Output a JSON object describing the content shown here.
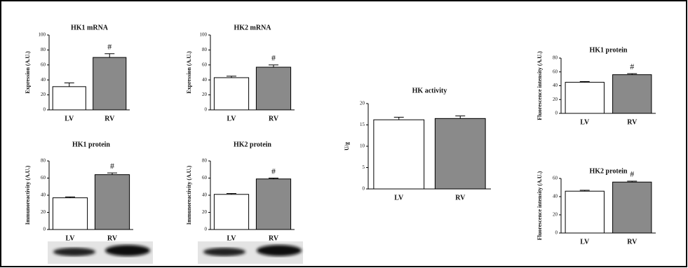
{
  "chart_data": [
    {
      "type": "bar",
      "title": "HK1 mRNA",
      "ylabel": "Expression (A.U.)",
      "categories": [
        "LV",
        "RV"
      ],
      "values": [
        31,
        70
      ],
      "errors": [
        5,
        5
      ],
      "colors": [
        "#ffffff",
        "#8a8a8a"
      ],
      "ylim": [
        0,
        100
      ],
      "yticks": [
        0,
        20,
        40,
        60,
        80,
        100
      ],
      "annotation": "#"
    },
    {
      "type": "bar",
      "title": "HK2 mRNA",
      "ylabel": "Expression (A.U.)",
      "categories": [
        "LV",
        "RV"
      ],
      "values": [
        43,
        57
      ],
      "errors": [
        2,
        3
      ],
      "colors": [
        "#ffffff",
        "#8a8a8a"
      ],
      "ylim": [
        0,
        100
      ],
      "yticks": [
        0,
        20,
        40,
        60,
        80,
        100
      ],
      "annotation": "#"
    },
    {
      "type": "bar",
      "title": "HK1 protein",
      "ylabel": "Immunoreactivity (A.U.)",
      "categories": [
        "LV",
        "RV"
      ],
      "values": [
        37,
        64
      ],
      "errors": [
        1,
        2
      ],
      "colors": [
        "#ffffff",
        "#8a8a8a"
      ],
      "ylim": [
        0,
        80
      ],
      "yticks": [
        0,
        20,
        40,
        60,
        80
      ],
      "annotation": "#"
    },
    {
      "type": "bar",
      "title": "HK2 protein",
      "ylabel": "Immunoreactivity (A.U.)",
      "categories": [
        "LV",
        "RV"
      ],
      "values": [
        41,
        59
      ],
      "errors": [
        1,
        1
      ],
      "colors": [
        "#ffffff",
        "#8a8a8a"
      ],
      "ylim": [
        0,
        80
      ],
      "yticks": [
        0,
        20,
        40,
        60,
        80
      ],
      "annotation": "#"
    },
    {
      "type": "bar",
      "title": "HK activity",
      "ylabel": "U/g",
      "categories": [
        "LV",
        "RV"
      ],
      "values": [
        16.2,
        16.5
      ],
      "errors": [
        0.6,
        0.6
      ],
      "colors": [
        "#ffffff",
        "#8a8a8a"
      ],
      "ylim": [
        0,
        20
      ],
      "yticks": [
        0,
        5,
        10,
        15,
        20
      ]
    },
    {
      "type": "bar",
      "title": "HK1 protein",
      "ylabel": "Fluorescence intensity (A.U.)",
      "categories": [
        "LV",
        "RV"
      ],
      "values": [
        45,
        56
      ],
      "errors": [
        1,
        1.5
      ],
      "colors": [
        "#ffffff",
        "#8a8a8a"
      ],
      "ylim": [
        0,
        80
      ],
      "yticks": [
        0,
        20,
        40,
        60,
        80
      ],
      "annotation": "#"
    },
    {
      "type": "bar",
      "title": "HK2 protein",
      "ylabel": "Fluorescence intensity (A.U.)",
      "categories": [
        "LV",
        "RV"
      ],
      "values": [
        46,
        56
      ],
      "errors": [
        1,
        1
      ],
      "colors": [
        "#ffffff",
        "#8a8a8a"
      ],
      "ylim": [
        0,
        60
      ],
      "yticks": [
        0,
        20,
        40,
        60
      ],
      "annotation": "#"
    }
  ]
}
